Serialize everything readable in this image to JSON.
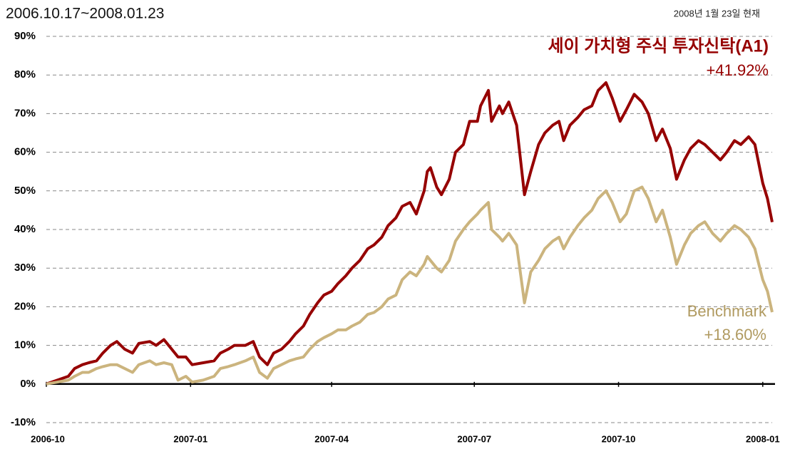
{
  "chart_data": {
    "type": "line",
    "title": "2006.10.17~2008.01.23",
    "subtitle": "2008년 1월 23일 현재",
    "x": [
      "2006-10-17",
      "2006-10-24",
      "2006-10-31",
      "2006-11-04",
      "2006-11-09",
      "2006-11-13",
      "2006-11-18",
      "2006-11-22",
      "2006-11-27",
      "2006-12-01",
      "2006-12-06",
      "2006-12-11",
      "2006-12-15",
      "2006-12-22",
      "2006-12-26",
      "2006-12-31",
      "2007-01-05",
      "2007-01-09",
      "2007-01-14",
      "2007-01-18",
      "2007-01-25",
      "2007-02-01",
      "2007-02-05",
      "2007-02-10",
      "2007-02-14",
      "2007-02-21",
      "2007-02-26",
      "2007-03-02",
      "2007-03-07",
      "2007-03-11",
      "2007-03-16",
      "2007-03-21",
      "2007-03-25",
      "2007-03-30",
      "2007-04-03",
      "2007-04-08",
      "2007-04-12",
      "2007-04-17",
      "2007-04-21",
      "2007-04-26",
      "2007-04-30",
      "2007-05-05",
      "2007-05-10",
      "2007-05-14",
      "2007-05-19",
      "2007-05-23",
      "2007-05-28",
      "2007-06-01",
      "2007-06-06",
      "2007-06-10",
      "2007-06-15",
      "2007-06-17",
      "2007-06-19",
      "2007-06-23",
      "2007-06-26",
      "2007-07-01",
      "2007-07-05",
      "2007-07-10",
      "2007-07-14",
      "2007-07-19",
      "2007-07-21",
      "2007-07-26",
      "2007-07-28",
      "2007-08-02",
      "2007-08-04",
      "2007-08-08",
      "2007-08-13",
      "2007-08-18",
      "2007-08-22",
      "2007-08-27",
      "2007-08-31",
      "2007-09-05",
      "2007-09-09",
      "2007-09-12",
      "2007-09-16",
      "2007-09-21",
      "2007-09-25",
      "2007-09-30",
      "2007-10-04",
      "2007-10-09",
      "2007-10-13",
      "2007-10-18",
      "2007-10-22",
      "2007-10-27",
      "2007-11-01",
      "2007-11-05",
      "2007-11-10",
      "2007-11-14",
      "2007-11-19",
      "2007-11-23",
      "2007-11-28",
      "2007-12-02",
      "2007-12-07",
      "2007-12-11",
      "2007-12-16",
      "2007-12-21",
      "2007-12-25",
      "2007-12-30",
      "2008-01-03",
      "2008-01-08",
      "2008-01-12",
      "2008-01-17",
      "2008-01-20",
      "2008-01-23"
    ],
    "series": [
      {
        "name": "세이 가치형 주식 투자신탁(A1)",
        "color": "#960000",
        "end_label": "+41.92%",
        "values": [
          0,
          1,
          2,
          4,
          5,
          5.5,
          6,
          8,
          10,
          11,
          9,
          8,
          10.5,
          11,
          10,
          11.5,
          9,
          7,
          7,
          5,
          5.5,
          6,
          8,
          9,
          10,
          10,
          11,
          7,
          5,
          8,
          9,
          11,
          13,
          15,
          18,
          21,
          23,
          24,
          26,
          28,
          30,
          32,
          35,
          36,
          38,
          41,
          43,
          46,
          47,
          44,
          50,
          55,
          56,
          51,
          49,
          53,
          60,
          62,
          68,
          68,
          72,
          76,
          68,
          72,
          70,
          73,
          67,
          49,
          55,
          62,
          65,
          67,
          68,
          63,
          67,
          69,
          71,
          72,
          76,
          78,
          74,
          68,
          71,
          75,
          73,
          70,
          63,
          66,
          61,
          53,
          58,
          61,
          63,
          62,
          60,
          58,
          60,
          63,
          62,
          64,
          62,
          52,
          48,
          41.92
        ]
      },
      {
        "name": "Benchmark",
        "color": "#cbb47e",
        "end_label": "+18.60%",
        "values": [
          0,
          0.5,
          1,
          2,
          3,
          3,
          4,
          4.5,
          5,
          5,
          4,
          3,
          5,
          6,
          5,
          5.5,
          5,
          1,
          2,
          0.5,
          1,
          2,
          4,
          4.5,
          5,
          6,
          7,
          3,
          1.5,
          4,
          5,
          6,
          6.5,
          7,
          9,
          11,
          12,
          13,
          14,
          14,
          15,
          16,
          18,
          18.5,
          20,
          22,
          23,
          27,
          29,
          28,
          31,
          33,
          32,
          30,
          29,
          32,
          37,
          40,
          42,
          44,
          45,
          47,
          40,
          38,
          37,
          39,
          36,
          21,
          29,
          32,
          35,
          37,
          38,
          35,
          38,
          41,
          43,
          45,
          48,
          50,
          47,
          42,
          44,
          50,
          51,
          48,
          42,
          45,
          38,
          31,
          36,
          39,
          41,
          42,
          39,
          37,
          39,
          41,
          40,
          38,
          35,
          27,
          24,
          18.6
        ]
      }
    ],
    "xlim": [
      "2006-10-17",
      "2008-01-23"
    ],
    "xticks": [
      {
        "value": "2006-10-17",
        "label": "2006-10"
      },
      {
        "value": "2007-01-17",
        "label": "2007-01"
      },
      {
        "value": "2007-04-17",
        "label": "2007-04"
      },
      {
        "value": "2007-07-17",
        "label": "2007-07"
      },
      {
        "value": "2007-10-17",
        "label": "2007-10"
      },
      {
        "value": "2008-01-17",
        "label": "2008-01"
      }
    ],
    "ylim": [
      -10,
      90
    ],
    "yticks": [
      {
        "value": -10,
        "label": "-10%"
      },
      {
        "value": 0,
        "label": "0%"
      },
      {
        "value": 10,
        "label": "10%"
      },
      {
        "value": 20,
        "label": "20%"
      },
      {
        "value": 30,
        "label": "30%"
      },
      {
        "value": 40,
        "label": "40%"
      },
      {
        "value": 50,
        "label": "50%"
      },
      {
        "value": 60,
        "label": "60%"
      },
      {
        "value": 70,
        "label": "70%"
      },
      {
        "value": 80,
        "label": "80%"
      },
      {
        "value": 90,
        "label": "90%"
      }
    ],
    "grid": true
  }
}
